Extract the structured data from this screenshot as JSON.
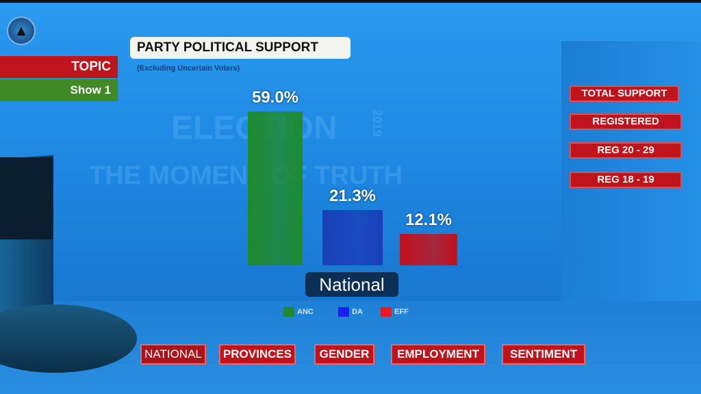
{
  "header": {
    "title": "PARTY POLITICAL SUPPORT",
    "subtitle": "(Excluding Uncertain Voters)"
  },
  "watermark": {
    "line1": "ELECTION",
    "year": "2019",
    "line2": "THE MOMENT OF TRUTH"
  },
  "side_menu": {
    "topic": "TOPIC",
    "show": "Show 1"
  },
  "right_menu": [
    "TOTAL SUPPORT",
    "REGISTERED",
    "REG 20 - 29",
    "REG 18 - 19"
  ],
  "bottom_menu": [
    "NATIONAL",
    "PROVINCES",
    "GENDER",
    "EMPLOYMENT",
    "SENTIMENT"
  ],
  "region_label": "National",
  "colors": {
    "ANC": "#1f8a2e",
    "DA": "#1a3fb8",
    "EFF": "#c4111b",
    "menu_red": "#c0141c"
  },
  "chart_data": {
    "type": "bar",
    "title": "PARTY POLITICAL SUPPORT",
    "subtitle": "(Excluding Uncertain Voters)",
    "categories": [
      "ANC",
      "DA",
      "EFF"
    ],
    "values": [
      59.0,
      21.3,
      12.1
    ],
    "data_labels": [
      "59.0%",
      "21.3%",
      "12.1%"
    ],
    "legend": [
      "ANC",
      "DA",
      "EFF"
    ],
    "legend_placement": "bottom",
    "grid": false,
    "ylim": [
      0,
      59.0
    ]
  }
}
